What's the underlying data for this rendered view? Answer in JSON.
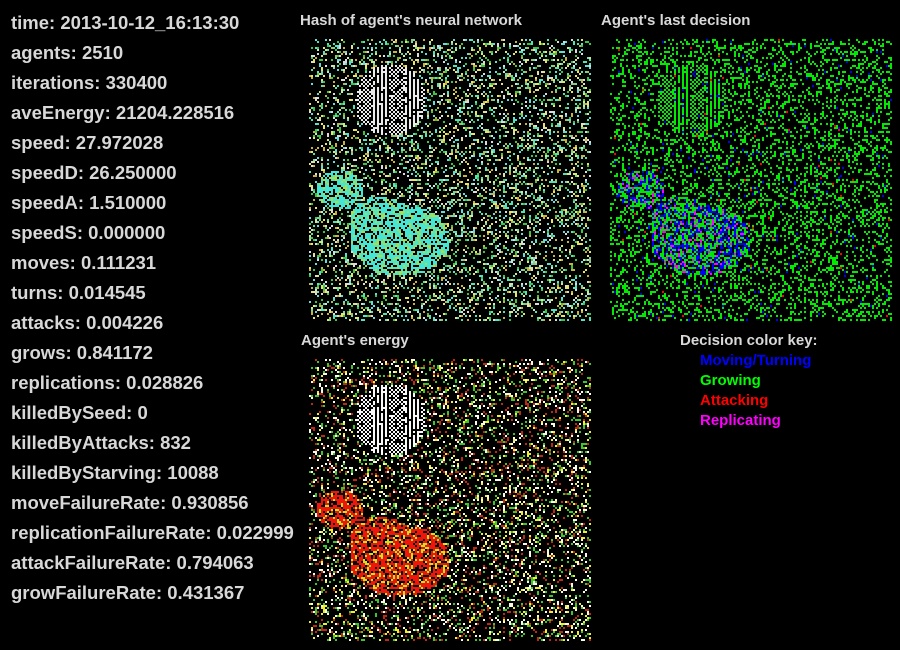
{
  "stats": [
    {
      "label": "time",
      "value": "2013-10-12_16:13:30"
    },
    {
      "label": "agents",
      "value": "2510"
    },
    {
      "label": "iterations",
      "value": "330400"
    },
    {
      "label": "aveEnergy",
      "value": "21204.228516"
    },
    {
      "label": "speed",
      "value": "27.972028"
    },
    {
      "label": "speedD",
      "value": "26.250000"
    },
    {
      "label": "speedA",
      "value": "1.510000"
    },
    {
      "label": "speedS",
      "value": "0.000000"
    },
    {
      "label": "moves",
      "value": "0.111231"
    },
    {
      "label": "turns",
      "value": "0.014545"
    },
    {
      "label": "attacks",
      "value": "0.004226"
    },
    {
      "label": "grows",
      "value": "0.841172"
    },
    {
      "label": "replications",
      "value": "0.028826"
    },
    {
      "label": "killedBySeed",
      "value": "0"
    },
    {
      "label": "killedByAttacks",
      "value": "832"
    },
    {
      "label": "killedByStarving",
      "value": "10088"
    },
    {
      "label": "moveFailureRate",
      "value": "0.930856"
    },
    {
      "label": "replicationFailureRate",
      "value": "0.022999"
    },
    {
      "label": "attackFailureRate",
      "value": "0.794063"
    },
    {
      "label": "growFailureRate",
      "value": "0.431367"
    }
  ],
  "panels": {
    "hash": {
      "title": "Hash of agent's neural network"
    },
    "decision": {
      "title": "Agent's last decision"
    },
    "energy": {
      "title": "Agent's energy"
    }
  },
  "key": {
    "title": "Decision color key:",
    "items": [
      {
        "label": "Moving/Turning",
        "color": "#0000ff"
      },
      {
        "label": "Growing",
        "color": "#00ff00"
      },
      {
        "label": "Attacking",
        "color": "#ff0000"
      },
      {
        "label": "Replicating",
        "color": "#ff00ff"
      }
    ]
  }
}
